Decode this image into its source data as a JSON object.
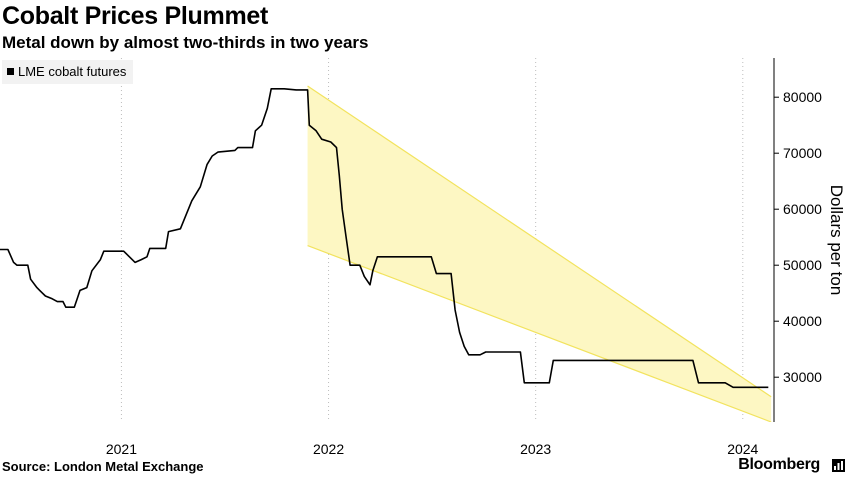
{
  "header": {
    "title": "Cobalt Prices Plummet",
    "subtitle": "Metal down by almost two-thirds in two years"
  },
  "footer": {
    "source": "Source: London Metal Exchange",
    "brand": "Bloomberg"
  },
  "colors": {
    "line": "#000000",
    "channel_fill": "#fdf7c3",
    "channel_edge": "#f2e35e",
    "grid": "#bdbdbd"
  },
  "chart_data": {
    "type": "line",
    "legend": {
      "entries": [
        "LME cobalt futures"
      ],
      "placement": "top-left"
    },
    "ylabel": "Dollars per ton",
    "xlim": [
      "2020-06-01",
      "2024-02-25"
    ],
    "ylim": [
      22000,
      87000
    ],
    "y_ticks": [
      30000,
      40000,
      50000,
      60000,
      70000,
      80000
    ],
    "x_ticks": [
      {
        "label": "2021",
        "date": "2021-01-01"
      },
      {
        "label": "2022",
        "date": "2022-01-01"
      },
      {
        "label": "2023",
        "date": "2023-01-01"
      },
      {
        "label": "2024",
        "date": "2024-01-01"
      }
    ],
    "grid": "vertical dotted",
    "series": [
      {
        "name": "LME cobalt futures",
        "points": [
          [
            "2020-06-01",
            52800
          ],
          [
            "2020-06-15",
            52800
          ],
          [
            "2020-06-25",
            50500
          ],
          [
            "2020-07-01",
            50000
          ],
          [
            "2020-07-20",
            50000
          ],
          [
            "2020-07-25",
            47500
          ],
          [
            "2020-08-05",
            46000
          ],
          [
            "2020-08-10",
            45500
          ],
          [
            "2020-08-20",
            44500
          ],
          [
            "2020-09-01",
            44000
          ],
          [
            "2020-09-10",
            43500
          ],
          [
            "2020-09-20",
            43500
          ],
          [
            "2020-09-25",
            42500
          ],
          [
            "2020-10-10",
            42500
          ],
          [
            "2020-10-15",
            44000
          ],
          [
            "2020-10-20",
            45500
          ],
          [
            "2020-11-01",
            46000
          ],
          [
            "2020-11-10",
            49000
          ],
          [
            "2020-11-25",
            51000
          ],
          [
            "2020-12-01",
            52500
          ],
          [
            "2021-01-05",
            52500
          ],
          [
            "2021-01-15",
            51500
          ],
          [
            "2021-01-25",
            50500
          ],
          [
            "2021-02-05",
            51000
          ],
          [
            "2021-02-15",
            51500
          ],
          [
            "2021-02-20",
            53000
          ],
          [
            "2021-03-20",
            53000
          ],
          [
            "2021-03-25",
            56000
          ],
          [
            "2021-04-15",
            56500
          ],
          [
            "2021-04-25",
            59000
          ],
          [
            "2021-05-05",
            61500
          ],
          [
            "2021-05-20",
            64000
          ],
          [
            "2021-06-01",
            68000
          ],
          [
            "2021-06-10",
            69500
          ],
          [
            "2021-06-20",
            70200
          ],
          [
            "2021-07-20",
            70500
          ],
          [
            "2021-07-25",
            71000
          ],
          [
            "2021-08-20",
            71000
          ],
          [
            "2021-08-25",
            74000
          ],
          [
            "2021-09-05",
            75000
          ],
          [
            "2021-09-15",
            78000
          ],
          [
            "2021-09-22",
            81500
          ],
          [
            "2021-10-15",
            81500
          ],
          [
            "2021-11-05",
            81300
          ],
          [
            "2021-11-25",
            81300
          ],
          [
            "2021-11-28",
            75000
          ],
          [
            "2021-12-10",
            74000
          ],
          [
            "2021-12-20",
            72500
          ],
          [
            "2022-01-05",
            72000
          ],
          [
            "2022-01-15",
            71000
          ],
          [
            "2022-01-20",
            66000
          ],
          [
            "2022-01-25",
            60000
          ],
          [
            "2022-02-01",
            55000
          ],
          [
            "2022-02-08",
            50000
          ],
          [
            "2022-02-25",
            50000
          ],
          [
            "2022-03-05",
            48000
          ],
          [
            "2022-03-15",
            46500
          ],
          [
            "2022-03-20",
            49000
          ],
          [
            "2022-03-28",
            51500
          ],
          [
            "2022-07-01",
            51500
          ],
          [
            "2022-07-10",
            48500
          ],
          [
            "2022-08-05",
            48500
          ],
          [
            "2022-08-12",
            42000
          ],
          [
            "2022-08-20",
            38000
          ],
          [
            "2022-08-28",
            35500
          ],
          [
            "2022-09-05",
            34000
          ],
          [
            "2022-09-25",
            34000
          ],
          [
            "2022-10-05",
            34500
          ],
          [
            "2022-12-05",
            34500
          ],
          [
            "2022-12-12",
            29000
          ],
          [
            "2023-01-25",
            29000
          ],
          [
            "2023-02-01",
            33000
          ],
          [
            "2023-10-05",
            33000
          ],
          [
            "2023-10-15",
            29000
          ],
          [
            "2023-12-01",
            29000
          ],
          [
            "2023-12-15",
            28200
          ],
          [
            "2024-02-15",
            28200
          ]
        ]
      }
    ],
    "channel": {
      "start": "2021-11-25",
      "end": "2024-02-20",
      "upper_start": 82000,
      "upper_end": 26500,
      "lower_start": 53500,
      "lower_end": 22000
    }
  }
}
